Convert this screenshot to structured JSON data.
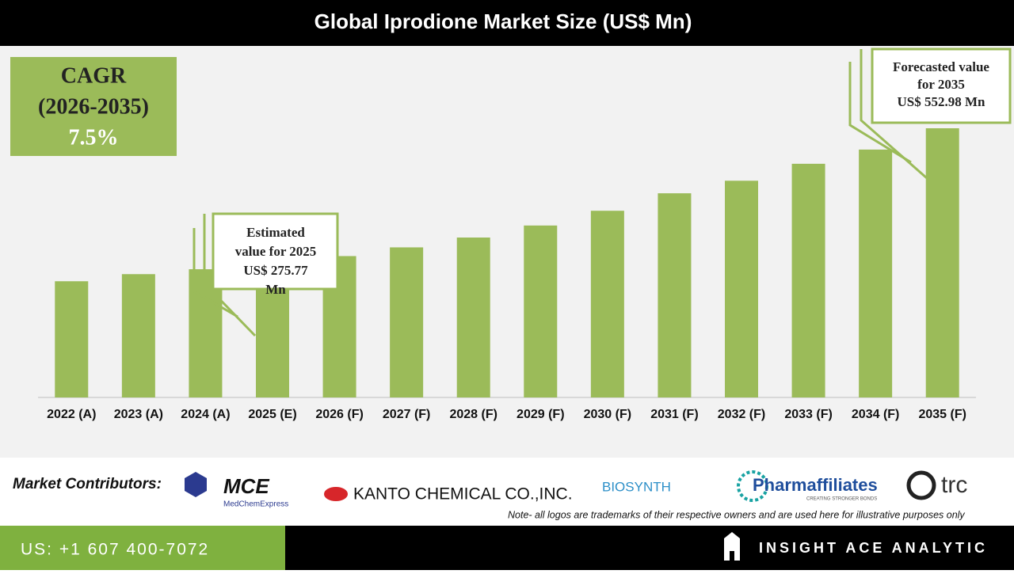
{
  "chart_data": {
    "type": "bar",
    "title": "Global Iprodione Market Size (US$ Mn)",
    "categories": [
      "2022 (A)",
      "2023 (A)",
      "2024 (A)",
      "2025 (E)",
      "2026 (F)",
      "2027 (F)",
      "2028 (F)",
      "2029 (F)",
      "2030 (F)",
      "2031 (F)",
      "2032 (F)",
      "2033 (F)",
      "2034 (F)",
      "2035 (F)"
    ],
    "values": [
      238.7,
      253.3,
      263.4,
      275.77,
      290.4,
      308.3,
      328.5,
      353.2,
      383.5,
      419.4,
      445.2,
      480.0,
      509.2,
      552.98
    ],
    "color": "#9bbb59",
    "cagr": {
      "label": "CAGR",
      "period": "(2026-2035)",
      "value": "7.5%"
    },
    "callouts": [
      {
        "lines": [
          "Estimated",
          "value for 2025",
          "US$ 275.77",
          "Mn"
        ]
      },
      {
        "lines": [
          "Forecasted value",
          "for 2035",
          "US$ 552.98 Mn"
        ]
      }
    ]
  },
  "footer": {
    "contributors_label": "Market Contributors:",
    "logos": [
      "MCE",
      "MedChemExpress",
      "KANTO CHEMICAL CO.,INC.",
      "BIOSYNTH",
      "Pharmaffiliates",
      "CREATING STRONGER BONDS",
      "trc"
    ],
    "note": "Note- all logos are trademarks of their respective owners and are used here for illustrative purposes only",
    "phone": "US: +1 607 400-7072",
    "brand": "INSIGHT ACE ANALYTIC"
  }
}
